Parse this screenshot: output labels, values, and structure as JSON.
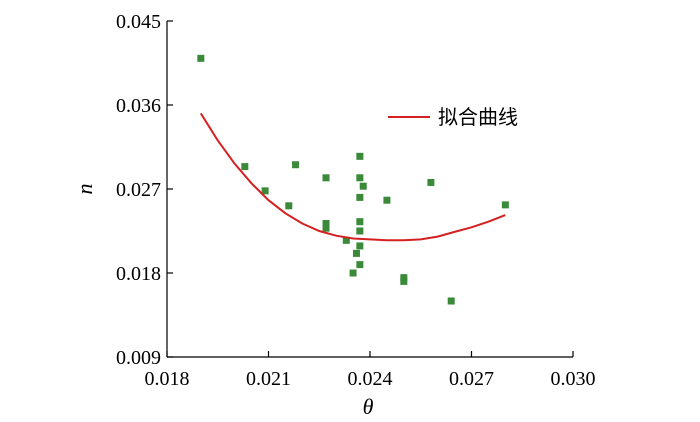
{
  "chart_data": {
    "type": "scatter",
    "xlabel": "θ",
    "ylabel": "n",
    "xlim": [
      0.018,
      0.03
    ],
    "ylim": [
      0.009,
      0.045
    ],
    "x_ticks": [
      "0.018",
      "0.021",
      "0.024",
      "0.027",
      "0.030"
    ],
    "y_ticks": [
      "0.009",
      "0.018",
      "0.027",
      "0.036",
      "0.045"
    ],
    "grid": false,
    "legend_position": "top-right",
    "colors": {
      "points": "#3a8a3a",
      "fit": "#d42020",
      "axis": "#000000"
    },
    "series": [
      {
        "kind": "points",
        "values": [
          [
            0.019,
            0.041
          ],
          [
            0.0203,
            0.0294
          ],
          [
            0.0209,
            0.0268
          ],
          [
            0.0216,
            0.0252
          ],
          [
            0.0218,
            0.0296
          ],
          [
            0.0227,
            0.0282
          ],
          [
            0.0227,
            0.0233
          ],
          [
            0.0227,
            0.0228
          ],
          [
            0.0233,
            0.0215
          ],
          [
            0.0235,
            0.018
          ],
          [
            0.0236,
            0.0201
          ],
          [
            0.0237,
            0.0305
          ],
          [
            0.0237,
            0.0282
          ],
          [
            0.0237,
            0.0261
          ],
          [
            0.0237,
            0.0235
          ],
          [
            0.0237,
            0.0225
          ],
          [
            0.0237,
            0.0209
          ],
          [
            0.0237,
            0.0189
          ],
          [
            0.0238,
            0.0273
          ],
          [
            0.0245,
            0.0258
          ],
          [
            0.025,
            0.0175
          ],
          [
            0.025,
            0.0171
          ],
          [
            0.0258,
            0.0277
          ],
          [
            0.0264,
            0.015
          ],
          [
            0.028,
            0.0253
          ]
        ]
      },
      {
        "kind": "fit",
        "name": "拟合曲线",
        "values": [
          [
            0.019,
            0.0351
          ],
          [
            0.0195,
            0.0322
          ],
          [
            0.02,
            0.0297
          ],
          [
            0.0205,
            0.0276
          ],
          [
            0.021,
            0.0258
          ],
          [
            0.0215,
            0.0244
          ],
          [
            0.022,
            0.0233
          ],
          [
            0.0225,
            0.0225
          ],
          [
            0.023,
            0.022
          ],
          [
            0.0235,
            0.0217
          ],
          [
            0.024,
            0.0216
          ],
          [
            0.0245,
            0.0215
          ],
          [
            0.025,
            0.0215
          ],
          [
            0.0255,
            0.0216
          ],
          [
            0.026,
            0.0219
          ],
          [
            0.0265,
            0.0224
          ],
          [
            0.027,
            0.0229
          ],
          [
            0.0275,
            0.0235
          ],
          [
            0.028,
            0.0242
          ]
        ]
      }
    ]
  }
}
